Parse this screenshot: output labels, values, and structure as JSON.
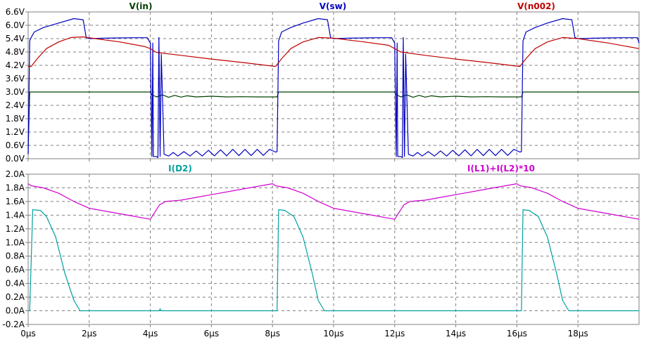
{
  "chart_data": [
    {
      "type": "line",
      "x_ticks": [
        "0µs",
        "2µs",
        "4µs",
        "6µs",
        "8µs",
        "10µs",
        "12µs",
        "14µs",
        "16µs",
        "18µs"
      ],
      "xlim": [
        0,
        20
      ],
      "ylim": [
        0,
        6.6
      ],
      "y_ticks": [
        "0.0V",
        "0.6V",
        "1.2V",
        "1.8V",
        "2.4V",
        "3.0V",
        "3.6V",
        "4.2V",
        "4.8V",
        "5.4V",
        "6.0V",
        "6.6V"
      ],
      "grid": true,
      "series": [
        {
          "name": "V(in)",
          "color": "#004000",
          "x": [
            0,
            0.05,
            0.1,
            4.0,
            4.05,
            4.2,
            4.4,
            4.6,
            4.8,
            5.0,
            5.2,
            5.5,
            6.0,
            6.5,
            7.0,
            7.5,
            8.0,
            8.15,
            8.2,
            12.0,
            12.05,
            12.2,
            12.4,
            12.6,
            12.8,
            13.0,
            13.2,
            13.5,
            14.0,
            14.5,
            15.0,
            15.5,
            16.0,
            16.15,
            16.2,
            20.0
          ],
          "values": [
            0.25,
            3.0,
            3.0,
            3.0,
            2.88,
            2.78,
            2.87,
            2.76,
            2.85,
            2.77,
            2.83,
            2.78,
            2.81,
            2.78,
            2.79,
            2.78,
            2.78,
            2.78,
            3.0,
            3.0,
            2.88,
            2.78,
            2.87,
            2.76,
            2.85,
            2.77,
            2.83,
            2.78,
            2.81,
            2.78,
            2.79,
            2.78,
            2.78,
            2.78,
            3.0,
            3.0
          ]
        },
        {
          "name": "V(sw)",
          "color": "#0000c0",
          "x": [
            0,
            0.05,
            0.1,
            0.2,
            0.5,
            1.0,
            1.5,
            1.8,
            1.9,
            2.0,
            2.5,
            3.0,
            3.5,
            3.9,
            4.0,
            4.05,
            4.08,
            4.1,
            4.2,
            4.25,
            4.28,
            4.32,
            4.36,
            4.45,
            4.6,
            4.75,
            4.9,
            5.1,
            5.3,
            5.5,
            5.7,
            5.9,
            6.1,
            6.3,
            6.5,
            6.7,
            6.9,
            7.1,
            7.3,
            7.5,
            7.7,
            7.9,
            8.1,
            8.15,
            8.2,
            8.3,
            8.6,
            9.0,
            9.5,
            9.8,
            9.9,
            10.0,
            10.5,
            11.0,
            11.5,
            11.9,
            12.0,
            12.05,
            12.08,
            12.1,
            12.2,
            12.25,
            12.28,
            12.32,
            12.36,
            12.45,
            12.6,
            12.75,
            12.9,
            13.1,
            13.3,
            13.5,
            13.7,
            13.9,
            14.1,
            14.3,
            14.5,
            14.7,
            14.9,
            15.1,
            15.3,
            15.5,
            15.7,
            15.9,
            16.1,
            16.15,
            16.2,
            16.3,
            16.6,
            17.0,
            17.5,
            17.8,
            17.9,
            18.0,
            18.5,
            19.0,
            19.5,
            19.95,
            20.0
          ],
          "values": [
            0.2,
            5.3,
            5.45,
            5.7,
            5.9,
            6.1,
            6.3,
            6.25,
            5.45,
            5.4,
            5.42,
            5.43,
            5.44,
            5.44,
            5.2,
            0.1,
            5.2,
            0.1,
            0.1,
            0.05,
            5.45,
            0.1,
            4.7,
            0.2,
            0.12,
            0.28,
            0.12,
            0.32,
            0.12,
            0.35,
            0.12,
            0.38,
            0.13,
            0.4,
            0.13,
            0.42,
            0.14,
            0.42,
            0.14,
            0.42,
            0.15,
            0.42,
            0.3,
            0.32,
            5.3,
            5.7,
            5.9,
            6.1,
            6.3,
            6.25,
            5.45,
            5.4,
            5.42,
            5.43,
            5.44,
            5.44,
            5.2,
            0.1,
            5.2,
            0.1,
            0.1,
            0.05,
            5.45,
            0.1,
            4.7,
            0.2,
            0.12,
            0.28,
            0.12,
            0.32,
            0.12,
            0.35,
            0.12,
            0.38,
            0.13,
            0.4,
            0.13,
            0.42,
            0.14,
            0.42,
            0.14,
            0.42,
            0.15,
            0.42,
            0.3,
            0.32,
            5.3,
            5.7,
            5.9,
            6.1,
            6.3,
            6.25,
            5.45,
            5.4,
            5.42,
            5.43,
            5.44,
            5.44,
            5.2
          ]
        },
        {
          "name": "V(n002)",
          "color": "#c00000",
          "x": [
            0,
            0.1,
            0.3,
            0.6,
            1.0,
            1.4,
            1.8,
            2.2,
            3.0,
            3.8,
            4.0,
            4.2,
            5.0,
            6.0,
            7.0,
            8.1,
            8.3,
            8.6,
            9.0,
            9.5,
            10.0,
            11.0,
            11.8,
            12.0,
            12.2,
            13.0,
            14.0,
            15.0,
            16.1,
            16.3,
            16.6,
            17.0,
            17.5,
            18.0,
            19.0,
            20.0
          ],
          "values": [
            4.15,
            4.15,
            4.5,
            4.95,
            5.25,
            5.45,
            5.48,
            5.4,
            5.25,
            5.05,
            4.95,
            4.78,
            4.65,
            4.48,
            4.33,
            4.15,
            4.5,
            4.95,
            5.25,
            5.45,
            5.42,
            5.25,
            5.1,
            4.95,
            4.8,
            4.65,
            4.48,
            4.33,
            4.15,
            4.5,
            4.95,
            5.25,
            5.45,
            5.4,
            5.2,
            4.95
          ]
        }
      ]
    },
    {
      "type": "line",
      "x_ticks": [
        "0µs",
        "2µs",
        "4µs",
        "6µs",
        "8µs",
        "10µs",
        "12µs",
        "14µs",
        "16µs",
        "18µs"
      ],
      "xlim": [
        0,
        20
      ],
      "ylim": [
        -0.2,
        2.0
      ],
      "y_ticks": [
        "-0.2A",
        "0.0A",
        "0.2A",
        "0.4A",
        "0.6A",
        "0.8A",
        "1.0A",
        "1.2A",
        "1.4A",
        "1.6A",
        "1.8A",
        "2.0A"
      ],
      "grid": true,
      "series": [
        {
          "name": "I(D2)",
          "color": "#00a0a0",
          "x": [
            0,
            0.05,
            0.15,
            0.4,
            0.6,
            0.9,
            1.2,
            1.5,
            1.7,
            1.8,
            4.0,
            4.3,
            4.32,
            4.34,
            8.1,
            8.15,
            8.2,
            8.4,
            8.7,
            9.0,
            9.3,
            9.5,
            9.7,
            9.8,
            12.0,
            16.1,
            16.15,
            16.2,
            16.4,
            16.7,
            17.0,
            17.3,
            17.5,
            17.7,
            17.8,
            20.0
          ],
          "values": [
            0.0,
            0.0,
            1.48,
            1.47,
            1.38,
            1.08,
            0.55,
            0.15,
            0.0,
            0.0,
            0.0,
            0.0,
            0.03,
            0.0,
            0.0,
            0.0,
            1.48,
            1.47,
            1.38,
            1.08,
            0.55,
            0.15,
            0.0,
            0.0,
            0.0,
            0.0,
            0.0,
            1.48,
            1.47,
            1.38,
            1.08,
            0.55,
            0.15,
            0.0,
            0.0,
            0.0
          ]
        },
        {
          "name": "I(L1)+I(L2)*10",
          "color": "#d000d0",
          "x": [
            0,
            0.1,
            0.5,
            1.0,
            1.5,
            2.0,
            3.0,
            4.0,
            4.3,
            4.5,
            5.0,
            5.5,
            6.0,
            7.0,
            8.0,
            8.1,
            8.5,
            9.0,
            9.5,
            10.0,
            11.0,
            12.0,
            12.3,
            12.5,
            13.0,
            13.5,
            14.0,
            15.0,
            16.0,
            16.1,
            16.5,
            17.0,
            17.5,
            18.0,
            19.0,
            20.0
          ],
          "values": [
            1.86,
            1.83,
            1.8,
            1.72,
            1.6,
            1.5,
            1.42,
            1.34,
            1.55,
            1.6,
            1.62,
            1.66,
            1.7,
            1.78,
            1.86,
            1.83,
            1.8,
            1.72,
            1.6,
            1.5,
            1.42,
            1.34,
            1.55,
            1.6,
            1.62,
            1.66,
            1.7,
            1.78,
            1.86,
            1.83,
            1.8,
            1.72,
            1.6,
            1.5,
            1.42,
            1.34
          ]
        }
      ]
    }
  ]
}
